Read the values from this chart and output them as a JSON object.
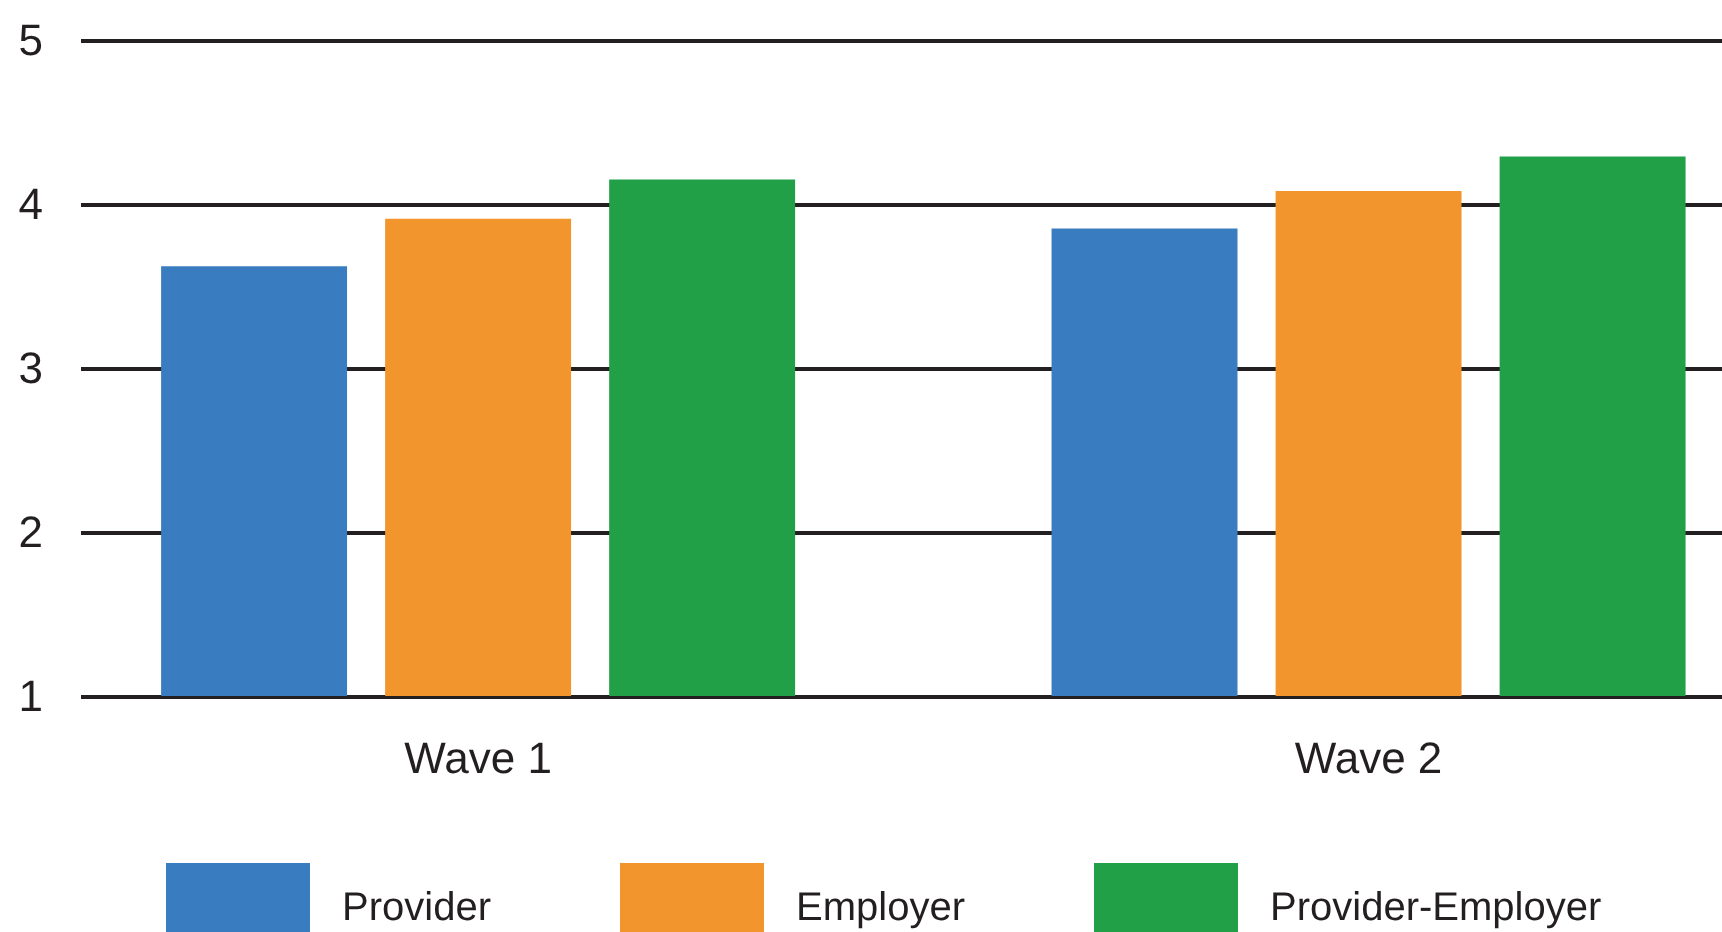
{
  "chart_data": {
    "type": "bar",
    "categories": [
      "Wave 1",
      "Wave 2"
    ],
    "series": [
      {
        "name": "Provider",
        "color": "#3a7cc0",
        "values": [
          3.62,
          3.85
        ]
      },
      {
        "name": "Employer",
        "color": "#f2952c",
        "values": [
          3.91,
          4.08
        ]
      },
      {
        "name": "Provider-Employer",
        "color": "#22a048",
        "values": [
          4.15,
          4.29
        ]
      }
    ],
    "ylim": [
      1,
      5
    ],
    "yticks": [
      1,
      2,
      3,
      4,
      5
    ],
    "grid": "y",
    "legend": "bottom"
  }
}
